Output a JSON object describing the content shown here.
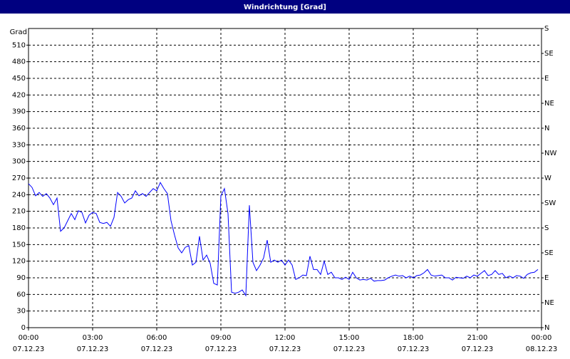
{
  "chart_data": {
    "type": "line",
    "title": "Windrichtung [Grad]",
    "ylabel": "Grad",
    "color": "#0000ff",
    "grid": true,
    "xlim": [
      0,
      1440
    ],
    "xticks": [
      {
        "value": 0,
        "label": "00:00",
        "date": "07.12.23"
      },
      {
        "value": 180,
        "label": "03:00",
        "date": "07.12.23"
      },
      {
        "value": 360,
        "label": "06:00",
        "date": "07.12.23"
      },
      {
        "value": 540,
        "label": "09:00",
        "date": "07.12.23"
      },
      {
        "value": 720,
        "label": "12:00",
        "date": "07.12.23"
      },
      {
        "value": 900,
        "label": "15:00",
        "date": "07.12.23"
      },
      {
        "value": 1080,
        "label": "18:00",
        "date": "07.12.23"
      },
      {
        "value": 1260,
        "label": "21:00",
        "date": "07.12.23"
      },
      {
        "value": 1440,
        "label": "00:00",
        "date": "08.12.23"
      }
    ],
    "ylim": [
      0,
      540
    ],
    "yticks": [
      0,
      30,
      60,
      90,
      120,
      150,
      180,
      210,
      240,
      270,
      300,
      330,
      360,
      390,
      420,
      450,
      480,
      510
    ],
    "y2lim": [
      0,
      540
    ],
    "y2ticks": [
      {
        "value": 0,
        "label": "N"
      },
      {
        "value": 45,
        "label": "NE"
      },
      {
        "value": 90,
        "label": "E"
      },
      {
        "value": 135,
        "label": "SE"
      },
      {
        "value": 180,
        "label": "S"
      },
      {
        "value": 225,
        "label": "SW"
      },
      {
        "value": 270,
        "label": "W"
      },
      {
        "value": 315,
        "label": "NW"
      },
      {
        "value": 360,
        "label": "N"
      },
      {
        "value": 405,
        "label": "NE"
      },
      {
        "value": 450,
        "label": "E"
      },
      {
        "value": 495,
        "label": "SE"
      },
      {
        "value": 540,
        "label": "S"
      }
    ],
    "x": [
      0,
      10,
      20,
      30,
      40,
      50,
      60,
      70,
      80,
      90,
      100,
      110,
      120,
      130,
      140,
      150,
      160,
      170,
      180,
      190,
      200,
      210,
      220,
      230,
      240,
      250,
      260,
      270,
      280,
      290,
      300,
      310,
      320,
      330,
      340,
      350,
      360,
      370,
      380,
      390,
      400,
      410,
      420,
      430,
      440,
      450,
      460,
      470,
      480,
      490,
      500,
      510,
      520,
      530,
      540,
      550,
      560,
      570,
      580,
      590,
      600,
      610,
      620,
      630,
      640,
      650,
      660,
      670,
      680,
      690,
      700,
      710,
      720,
      730,
      740,
      750,
      760,
      770,
      780,
      790,
      800,
      810,
      820,
      830,
      840,
      850,
      860,
      870,
      880,
      890,
      900,
      910,
      920,
      930,
      940,
      950,
      960,
      970,
      980,
      990,
      1000,
      1010,
      1020,
      1030,
      1040,
      1050,
      1060,
      1070,
      1080,
      1090,
      1100,
      1110,
      1120,
      1130,
      1140,
      1150,
      1160,
      1170,
      1180,
      1190,
      1200,
      1210,
      1220,
      1230,
      1240,
      1250,
      1260,
      1270,
      1280,
      1290,
      1300,
      1310,
      1320,
      1330,
      1340,
      1350,
      1360,
      1370,
      1380,
      1390,
      1400,
      1410,
      1420,
      1430
    ],
    "values": [
      260,
      253,
      238,
      244,
      237,
      242,
      234,
      222,
      234,
      174,
      180,
      193,
      206,
      195,
      211,
      208,
      189,
      203,
      208,
      206,
      190,
      188,
      190,
      183,
      199,
      244,
      237,
      225,
      231,
      234,
      247,
      238,
      242,
      237,
      244,
      251,
      247,
      262,
      251,
      242,
      193,
      167,
      144,
      135,
      145,
      148,
      113,
      118,
      165,
      122,
      131,
      116,
      80,
      77,
      238,
      251,
      206,
      64,
      62,
      64,
      68,
      58,
      221,
      118,
      103,
      113,
      126,
      158,
      118,
      122,
      118,
      122,
      113,
      122,
      113,
      87,
      90,
      95,
      94,
      129,
      105,
      105,
      96,
      120,
      96,
      100,
      90,
      90,
      87,
      91,
      87,
      100,
      90,
      86,
      87,
      86,
      89,
      84,
      85,
      85,
      86,
      90,
      93,
      95,
      93,
      94,
      90,
      93,
      90,
      94,
      95,
      99,
      105,
      95,
      93,
      94,
      95,
      90,
      90,
      86,
      91,
      90,
      89,
      93,
      90,
      95,
      93,
      98,
      103,
      94,
      96,
      103,
      96,
      98,
      90,
      93,
      90,
      94,
      93,
      89,
      96,
      99,
      100,
      105
    ]
  }
}
